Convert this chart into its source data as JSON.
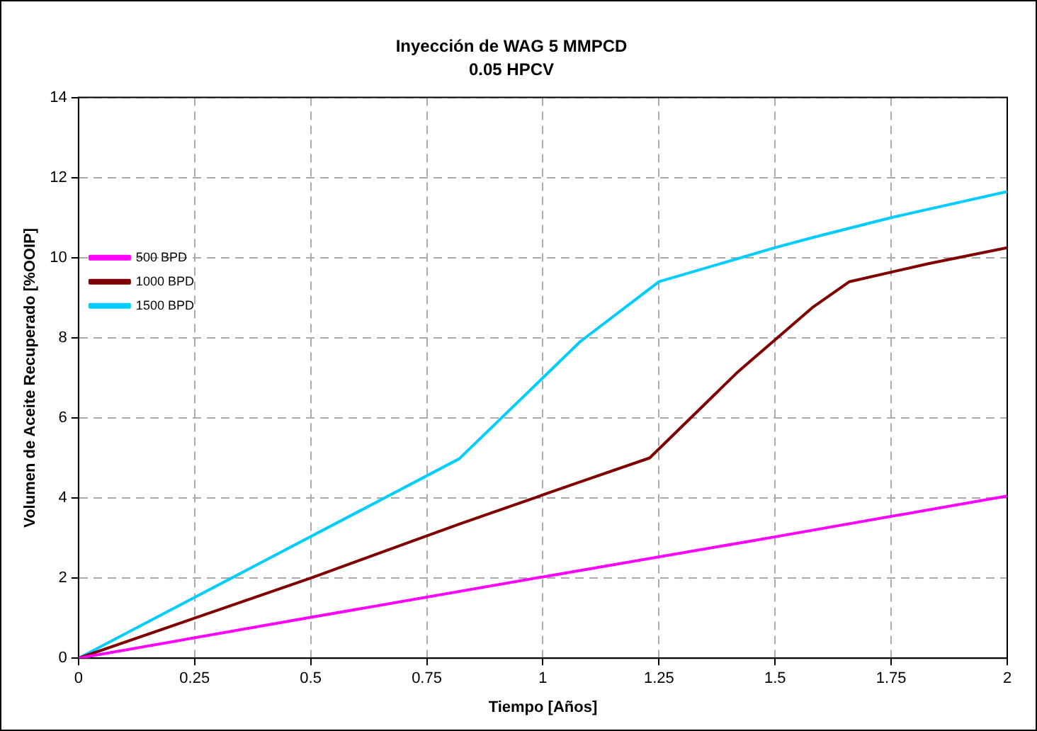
{
  "chart_data": {
    "type": "line",
    "title": "Inyección de WAG 5 MMPCD",
    "subtitle": "0.05 HPCV",
    "xlabel": "Tiempo [Años]",
    "ylabel": "Volumen de Aceite Recuperado [%OOIP]",
    "xlim": [
      0,
      2
    ],
    "xticks": [
      0,
      0.25,
      0.5,
      0.75,
      1,
      1.25,
      1.5,
      1.75,
      2
    ],
    "ylim": [
      0,
      14
    ],
    "yticks": [
      0,
      2,
      4,
      6,
      8,
      10,
      12,
      14
    ],
    "grid": true,
    "legend": "left",
    "marker": "none",
    "line_style": "solid",
    "series": [
      {
        "name": "500 BPD",
        "color": "#ff00ff",
        "x": [
          0,
          0.5,
          1,
          1.5,
          2
        ],
        "values": [
          0,
          1.02,
          2.03,
          3.03,
          4.05
        ]
      },
      {
        "name": "1000 BPD",
        "color": "#800000",
        "x": [
          0,
          0.25,
          0.5,
          0.82,
          1.08,
          1.23,
          1.42,
          1.58,
          1.66,
          1.83,
          2
        ],
        "values": [
          0,
          1.0,
          2.0,
          3.35,
          4.4,
          5.0,
          7.15,
          8.75,
          9.4,
          9.85,
          10.25
        ]
      },
      {
        "name": "1500 BPD",
        "color": "#00ccff",
        "x": [
          0,
          0.82,
          1.08,
          1.25,
          1.5,
          1.58,
          1.75,
          2
        ],
        "values": [
          0,
          4.98,
          7.9,
          9.4,
          10.25,
          10.5,
          11.0,
          11.65
        ]
      }
    ]
  }
}
